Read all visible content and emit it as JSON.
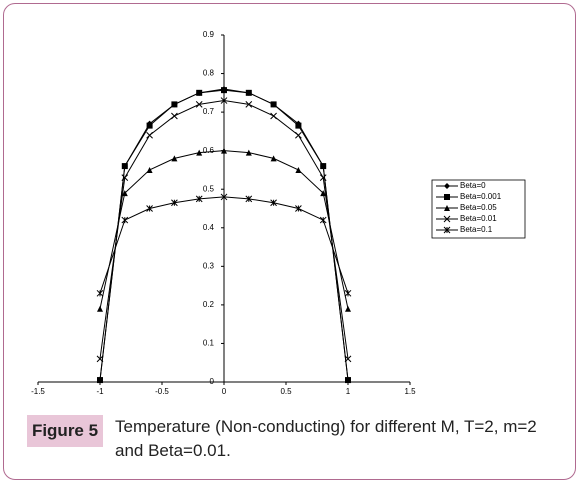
{
  "chart_data": {
    "type": "line",
    "caption_label": "Figure 5",
    "caption": "Temperature (Non-conducting) for different M, T=2, m=2 and Beta=0.01.",
    "x": [
      -1,
      -0.8,
      -0.6,
      -0.4,
      -0.2,
      0,
      0.2,
      0.4,
      0.6,
      0.8,
      1
    ],
    "series": [
      {
        "name": "Beta=0",
        "color": "#000000",
        "marker": "diamond",
        "values": [
          0.005,
          0.56,
          0.67,
          0.72,
          0.75,
          0.76,
          0.75,
          0.72,
          0.67,
          0.56,
          0.005
        ]
      },
      {
        "name": "Beta=0.001",
        "color": "#000000",
        "marker": "square",
        "values": [
          0.005,
          0.56,
          0.665,
          0.72,
          0.75,
          0.757,
          0.75,
          0.72,
          0.665,
          0.56,
          0.005
        ]
      },
      {
        "name": "Beta=0.05",
        "color": "#000000",
        "marker": "triangle",
        "values": [
          0.19,
          0.49,
          0.55,
          0.58,
          0.595,
          0.6,
          0.595,
          0.58,
          0.55,
          0.49,
          0.19
        ]
      },
      {
        "name": "Beta=0.01",
        "color": "#000000",
        "marker": "x",
        "values": [
          0.06,
          0.53,
          0.64,
          0.69,
          0.72,
          0.73,
          0.72,
          0.69,
          0.64,
          0.53,
          0.06
        ]
      },
      {
        "name": "Beta=0.1",
        "color": "#000000",
        "marker": "star",
        "values": [
          0.23,
          0.42,
          0.45,
          0.465,
          0.475,
          0.48,
          0.475,
          0.465,
          0.45,
          0.42,
          0.23
        ]
      }
    ],
    "xlim": [
      -1.5,
      1.5
    ],
    "xticks": [
      -1.5,
      -1,
      -0.5,
      0,
      0.5,
      1,
      1.5
    ],
    "ylim": [
      0,
      0.9
    ],
    "yticks": [
      0,
      0.1,
      0.2,
      0.3,
      0.4,
      0.5,
      0.6,
      0.7,
      0.8,
      0.9
    ],
    "grid": false,
    "legend": "right"
  }
}
